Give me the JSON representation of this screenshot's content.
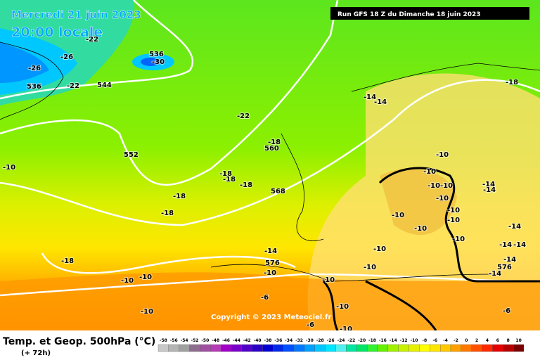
{
  "map": {
    "date": "Mercredi 21 juin 2023",
    "time": "20:00 locale",
    "run": "Run GFS 18 Z du Dimanche 18 juin 2023",
    "copyright": "Copyright © 2023 Meteociel.fr",
    "labels": [
      "536",
      "-30",
      "-26",
      "-26",
      "536",
      "-22",
      "544",
      "-22",
      "-22",
      "552",
      "-18",
      "560",
      "-18",
      "-18",
      "-18",
      "-18",
      "568",
      "-18",
      "-14",
      "-14",
      "-10",
      "-18",
      "576",
      "-14",
      "-10",
      "-10",
      "-10",
      "-10",
      "-10",
      "-6",
      "-10",
      "-6",
      "-10",
      "-18",
      "-14",
      "-14",
      "-14",
      "-14",
      "-14",
      "-14",
      "576",
      "-14",
      "-6",
      "-10",
      "-10",
      "-10",
      "-10",
      "-10",
      "-10",
      "-10",
      "-10",
      "-10",
      "-10",
      "-10",
      "-10"
    ]
  },
  "legend": {
    "title": "Temp. et Geop. 500hPa (°C)",
    "lead": "(+ 72h)",
    "scale": [
      -58,
      -56,
      -54,
      -52,
      -50,
      -48,
      -46,
      -44,
      -42,
      -40,
      -38,
      -36,
      -34,
      -32,
      -30,
      -28,
      -26,
      -24,
      -22,
      -20,
      -18,
      -16,
      -14,
      -12,
      -10,
      -8,
      -6,
      -4,
      -2,
      0,
      2,
      4,
      6,
      8,
      10
    ],
    "colors": [
      "#c8c8c8",
      "#b4b4b4",
      "#a0a0a0",
      "#8c6e8c",
      "#a050a0",
      "#b43cb4",
      "#a000c8",
      "#7800c8",
      "#5000c8",
      "#2800c8",
      "#0000d2",
      "#0028e6",
      "#0050ff",
      "#0078ff",
      "#00a0ff",
      "#00c8ff",
      "#00e6ff",
      "#50f0f0",
      "#00e6a0",
      "#00e664",
      "#32f032",
      "#64f000",
      "#a0f000",
      "#c8f000",
      "#e6f000",
      "#ffff00",
      "#ffe600",
      "#ffc800",
      "#ffa000",
      "#ff7800",
      "#ff5000",
      "#ff2800",
      "#e60000",
      "#b40000",
      "#780000"
    ]
  }
}
